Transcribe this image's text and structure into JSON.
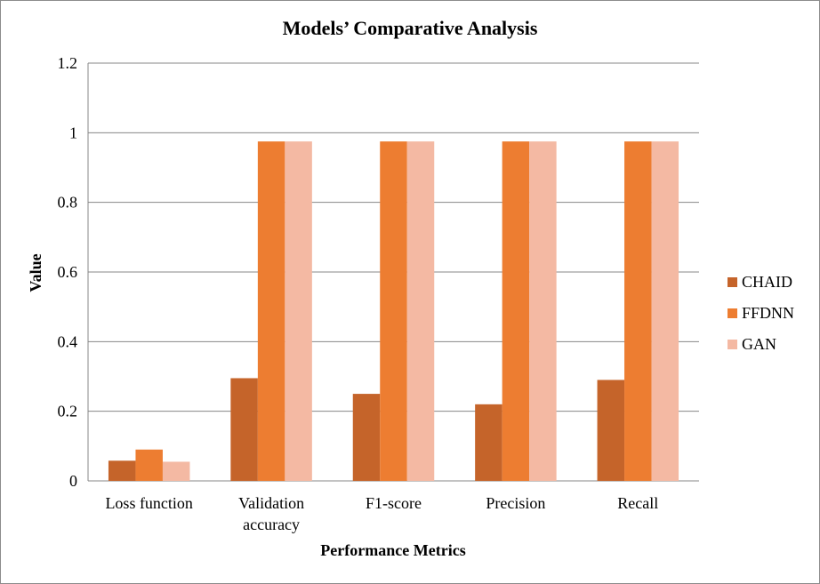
{
  "chart_data": {
    "type": "bar",
    "title": "Models’ Comparative Analysis",
    "xlabel": "Performance Metrics",
    "ylabel": "Value",
    "ylim": [
      0,
      1.2
    ],
    "yticks": [
      "0",
      "0.2",
      "0.4",
      "0.6",
      "0.8",
      "1",
      "1.2"
    ],
    "categories": [
      [
        "Loss function"
      ],
      [
        "Validation",
        "accuracy"
      ],
      [
        "F1-score"
      ],
      [
        "Precision"
      ],
      [
        "Recall"
      ]
    ],
    "series": [
      {
        "name": "CHAID",
        "color": "#c5642a",
        "values": [
          0.058,
          0.295,
          0.25,
          0.22,
          0.29
        ]
      },
      {
        "name": "FFDNN",
        "color": "#ed7d31",
        "values": [
          0.09,
          0.975,
          0.975,
          0.975,
          0.975
        ]
      },
      {
        "name": "GAN",
        "color": "#f4b9a3",
        "values": [
          0.055,
          0.975,
          0.975,
          0.975,
          0.975
        ]
      }
    ],
    "grid": true,
    "legend": "right"
  }
}
